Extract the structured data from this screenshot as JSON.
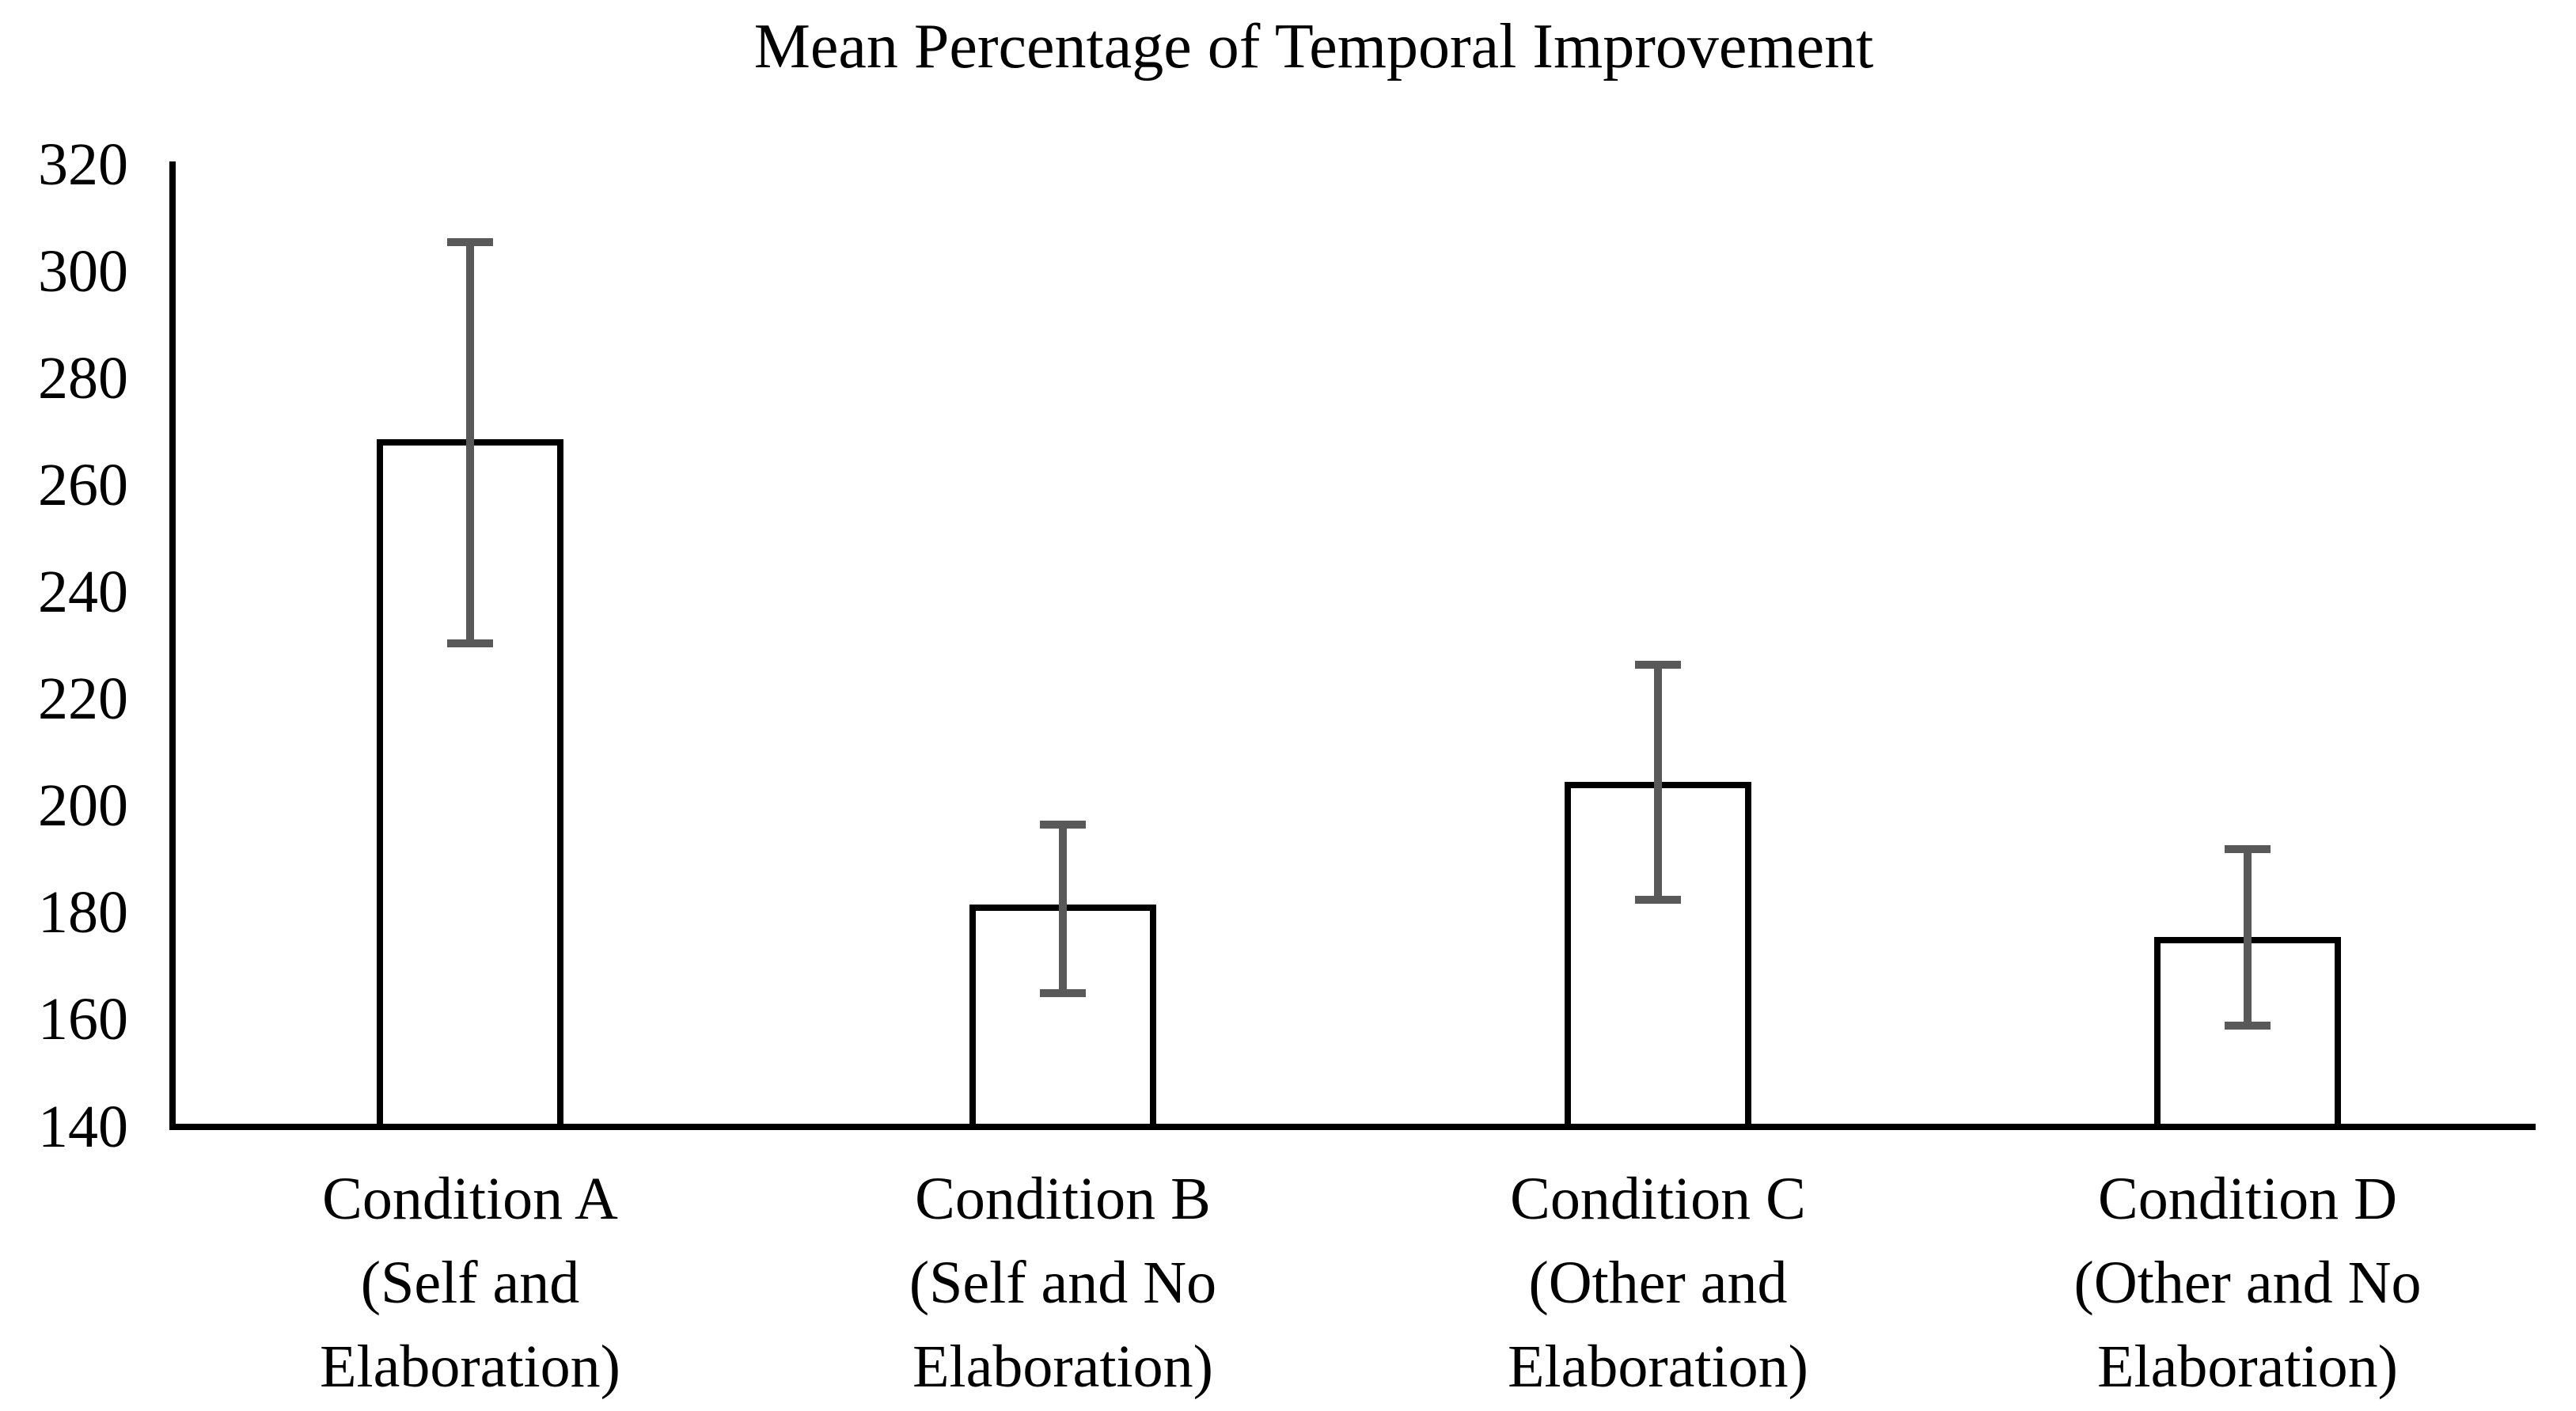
{
  "chart_data": {
    "type": "bar",
    "title": "Mean Percentage of Temporal Improvement",
    "categories": [
      [
        "Condition A",
        "(Self and",
        "Elaboration)"
      ],
      [
        "Condition B",
        "(Self and No",
        "Elaboration)"
      ],
      [
        "Condition C",
        "(Other and",
        "Elaboration)"
      ],
      [
        "Condition D",
        "(Other and No",
        "Elaboration)"
      ]
    ],
    "values": [
      268,
      181,
      204,
      175
    ],
    "error_upper": [
      305.5,
      196.5,
      226.5,
      192
    ],
    "error_lower": [
      230.5,
      165,
      182.5,
      159
    ],
    "y_ticks": [
      "320",
      "300",
      "280",
      "260",
      "240",
      "220",
      "200",
      "180",
      "160",
      "140"
    ],
    "ylim": [
      140,
      320
    ],
    "xlabel": "",
    "ylabel": "",
    "grid": false,
    "legend": null,
    "colors": {
      "bar_fill": "#ffffff",
      "bar_border": "#000000",
      "error_bar": "#595959",
      "axis": "#000000",
      "text": "#000000",
      "background": "#ffffff"
    }
  }
}
